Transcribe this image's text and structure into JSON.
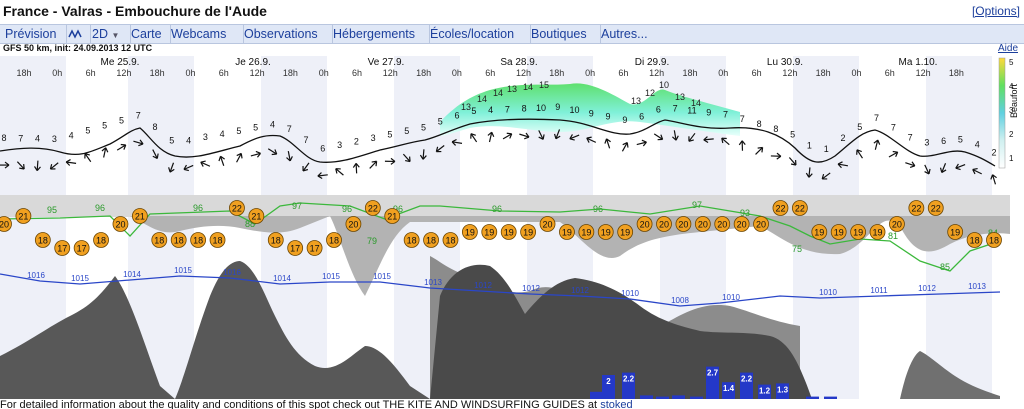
{
  "header": {
    "title": "France - Valras - Embouchure de l'Aude",
    "options_label": "[Options]"
  },
  "tabs": [
    "Prévision",
    "2D",
    "Carte",
    "Webcams",
    "Observations",
    "Hébergements",
    "Écoles/location",
    "Boutiques",
    "Autres..."
  ],
  "model_info": "GFS 50 km, init: 24.09.2013 12 UTC",
  "help_label": "Aide",
  "legend": {
    "unit": "Beaufort",
    "levels": [
      "5",
      "4",
      "3",
      "2",
      "1"
    ]
  },
  "days": [
    "Me 25.9.",
    "Je 26.9.",
    "Ve 27.9.",
    "Sa 28.9.",
    "Di 29.9.",
    "Lu 30.9.",
    "Ma 1.10."
  ],
  "hours": [
    "18h",
    "0h",
    "6h",
    "12h",
    "18h",
    "0h",
    "6h",
    "12h",
    "18h",
    "0h",
    "6h",
    "12h",
    "18h",
    "0h",
    "6h",
    "12h",
    "18h",
    "0h",
    "6h",
    "12h",
    "18h",
    "0h",
    "6h",
    "12h",
    "18h",
    "0h",
    "6h",
    "12h",
    "18h"
  ],
  "wind_speeds": [
    "8",
    "7",
    "4",
    "3",
    "4",
    "5",
    "5",
    "5",
    "7",
    "8",
    "5",
    "4",
    "3",
    "4",
    "5",
    "5",
    "4",
    "7",
    "7",
    "6",
    "3",
    "2",
    "3",
    "5",
    "5",
    "5",
    "5",
    "6",
    "5",
    "4",
    "7",
    "8",
    "10",
    "9",
    "10",
    "9",
    "9",
    "9",
    "6",
    "6",
    "7",
    "11",
    "9",
    "7",
    "7",
    "8",
    "8",
    "5",
    "1",
    "1",
    "2",
    "5",
    "7",
    "7",
    "7",
    "3",
    "6",
    "5",
    "4",
    "2"
  ],
  "gust_speeds": [
    "13",
    "14",
    "14",
    "13",
    "14",
    "15",
    "13",
    "12",
    "10",
    "13",
    "14"
  ],
  "temperatures": [
    "20",
    "21",
    "18",
    "17",
    "17",
    "18",
    "20",
    "21",
    "18",
    "18",
    "18",
    "18",
    "22",
    "21",
    "18",
    "17",
    "17",
    "18",
    "20",
    "22",
    "21",
    "18",
    "18",
    "18",
    "19",
    "19",
    "19",
    "19",
    "20",
    "19",
    "19",
    "19",
    "19",
    "20",
    "20",
    "20",
    "20",
    "20",
    "20",
    "20",
    "22",
    "22",
    "19",
    "19",
    "19",
    "19",
    "20",
    "22",
    "22",
    "19",
    "18",
    "18"
  ],
  "humidity": [
    "95",
    "96",
    "96",
    "88",
    "97",
    "96",
    "79",
    "96",
    "96",
    "96",
    "89",
    "97",
    "93",
    "75",
    "81",
    "85",
    "84"
  ],
  "pressure": [
    "1016",
    "1015",
    "1014",
    "1015",
    "1016",
    "1014",
    "1015",
    "1015",
    "1013",
    "1012",
    "1012",
    "1012",
    "1010",
    "1008",
    "1010",
    "1010",
    "1011",
    "1012",
    "1013"
  ],
  "precip": [
    "2",
    "2.2",
    "2.7",
    "1.4",
    "2.2",
    "1.2",
    "1.3"
  ],
  "footer": {
    "text": "For detailed information about the quality and conditions of this spot check out THE KITE AND WINDSURFING GUIDES at",
    "link": "stoked"
  },
  "colors": {
    "accent": "#1c3f9c",
    "tab_bg": "#dfe7f6",
    "temp_dot": "#f0a020",
    "humidity_line": "#3cb83c",
    "pressure_line": "#2a46c8",
    "precip_bar": "#2438c8"
  }
}
